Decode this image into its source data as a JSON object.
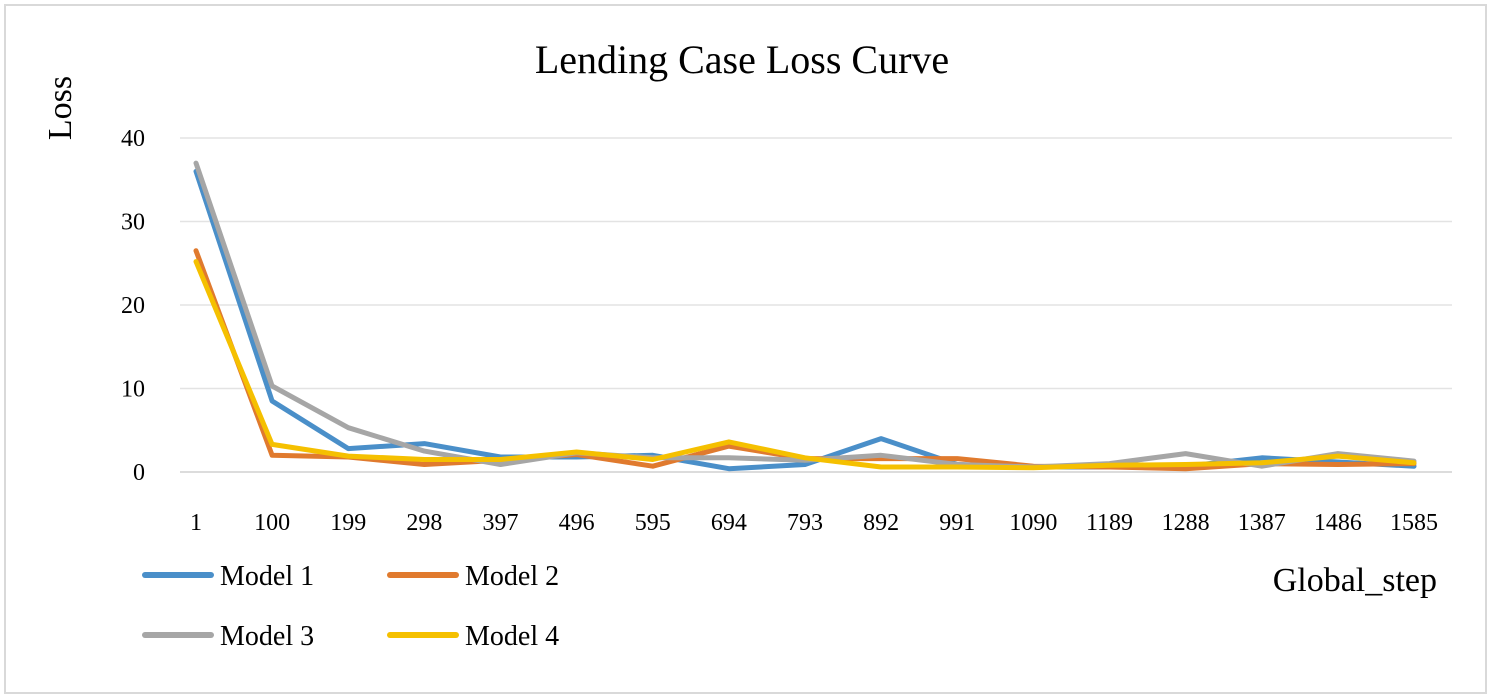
{
  "chart_data": {
    "type": "line",
    "title": "Lending Case Loss Curve",
    "xlabel": "Global_step",
    "ylabel": "Loss",
    "ylim": [
      0,
      40
    ],
    "yticks": [
      0,
      10,
      20,
      30,
      40
    ],
    "grid": true,
    "legend_position": "bottom-left",
    "categories": [
      "1",
      "100",
      "199",
      "298",
      "397",
      "496",
      "595",
      "694",
      "793",
      "892",
      "991",
      "1090",
      "1189",
      "1288",
      "1387",
      "1486",
      "1585"
    ],
    "series": [
      {
        "name": "Model 1",
        "color": "#4a8fc9",
        "values": [
          36,
          8.5,
          2.8,
          3.4,
          1.8,
          1.8,
          2.0,
          0.4,
          0.9,
          4.0,
          0.9,
          0.6,
          0.6,
          0.7,
          1.7,
          1.2,
          0.7
        ]
      },
      {
        "name": "Model 2",
        "color": "#e07a2e",
        "values": [
          26.5,
          2.0,
          1.8,
          0.9,
          1.4,
          2.1,
          0.7,
          3.1,
          1.6,
          1.6,
          1.6,
          0.7,
          0.6,
          0.4,
          1.0,
          0.9,
          1.0
        ]
      },
      {
        "name": "Model 3",
        "color": "#a6a6a6",
        "values": [
          37,
          10.3,
          5.3,
          2.5,
          0.9,
          2.3,
          1.7,
          1.7,
          1.4,
          2.0,
          0.9,
          0.6,
          1.0,
          2.2,
          0.7,
          2.2,
          1.3
        ]
      },
      {
        "name": "Model 4",
        "color": "#f5c000",
        "values": [
          25.2,
          3.3,
          1.9,
          1.5,
          1.5,
          2.4,
          1.5,
          3.6,
          1.7,
          0.6,
          0.6,
          0.5,
          0.8,
          0.9,
          1.1,
          1.9,
          1.1
        ]
      }
    ]
  }
}
